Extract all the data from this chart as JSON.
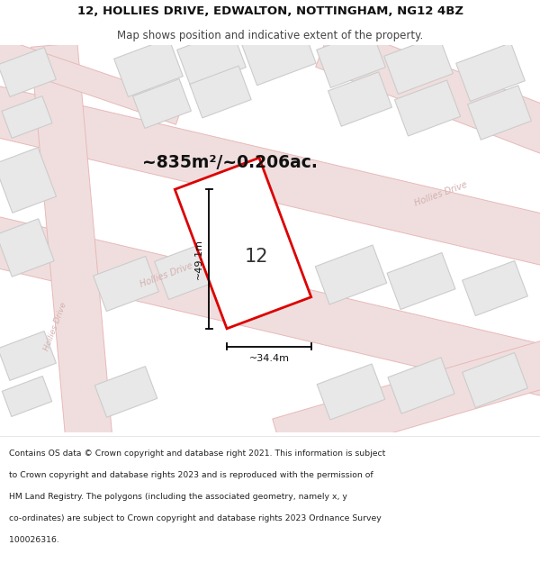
{
  "title_line1": "12, HOLLIES DRIVE, EDWALTON, NOTTINGHAM, NG12 4BZ",
  "title_line2": "Map shows position and indicative extent of the property.",
  "area_text": "~835m²/~0.206ac.",
  "house_number": "12",
  "dim_width": "~34.4m",
  "dim_height": "~49.1m",
  "footer_lines": [
    "Contains OS data © Crown copyright and database right 2021. This information is subject",
    "to Crown copyright and database rights 2023 and is reproduced with the permission of",
    "HM Land Registry. The polygons (including the associated geometry, namely x, y",
    "co-ordinates) are subject to Crown copyright and database rights 2023 Ordnance Survey",
    "100026316."
  ],
  "map_bg": "#faf8f8",
  "road_fill": "#f0dede",
  "road_edge": "#e8b8b8",
  "parcel_fill": "#e8e8e8",
  "parcel_edge": "#cccccc",
  "property_fill": "#ffffff",
  "property_edge": "#dd0000",
  "road_label_color": "#d4b0b0",
  "dim_color": "#111111",
  "header_bg": "#ffffff",
  "footer_bg": "#ffffff",
  "title_color": "#111111",
  "subtitle_color": "#444444",
  "area_color": "#111111",
  "num_color": "#333333"
}
